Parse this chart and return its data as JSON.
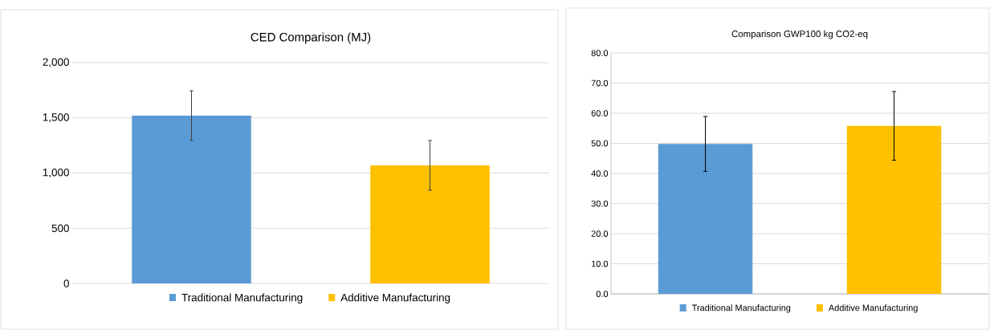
{
  "chart_data": [
    {
      "type": "bar",
      "title": "CED Comparison (MJ)",
      "categories": [
        null,
        null
      ],
      "series": [
        {
          "name": "Traditional Manufacturing",
          "color": "#5b9bd5",
          "values": [
            1520,
            null
          ],
          "errors": [
            225,
            null
          ]
        },
        {
          "name": "Additive Manufacturing",
          "color": "#ffc000",
          "values": [
            null,
            1070
          ],
          "errors": [
            null,
            225
          ]
        }
      ],
      "ylim": [
        0,
        2000
      ],
      "yticks": [
        0,
        500,
        {
          "value": 1000,
          "label": "1,000"
        },
        {
          "value": 1500,
          "label": "1,500"
        },
        {
          "value": 2000,
          "label": "2,000"
        }
      ],
      "grid": "y",
      "legend": "bottom",
      "tick_labels": "y"
    },
    {
      "type": "bar",
      "title": "Comparison GWP100 kg CO2-eq",
      "categories": [
        null,
        null
      ],
      "series": [
        {
          "name": "Traditional Manufacturing",
          "color": "#5b9bd5",
          "values": [
            49.8,
            null
          ],
          "errors": [
            9.1,
            null
          ]
        },
        {
          "name": "Additive Manufacturing",
          "color": "#ffc000",
          "values": [
            null,
            55.8
          ],
          "errors": [
            null,
            11.4
          ]
        }
      ],
      "ylim": [
        0,
        80
      ],
      "yticks": [
        {
          "value": 0,
          "label": "0.0"
        },
        {
          "value": 10,
          "label": "10.0"
        },
        {
          "value": 20,
          "label": "20.0"
        },
        {
          "value": 30,
          "label": "30.0"
        },
        {
          "value": 40,
          "label": "40.0"
        },
        {
          "value": 50,
          "label": "50.0"
        },
        {
          "value": 60,
          "label": "60.0"
        },
        {
          "value": 70,
          "label": "70.0"
        },
        {
          "value": 80,
          "label": "80.0"
        }
      ],
      "grid": "y",
      "legend": "bottom",
      "tick_labels": "y"
    }
  ]
}
